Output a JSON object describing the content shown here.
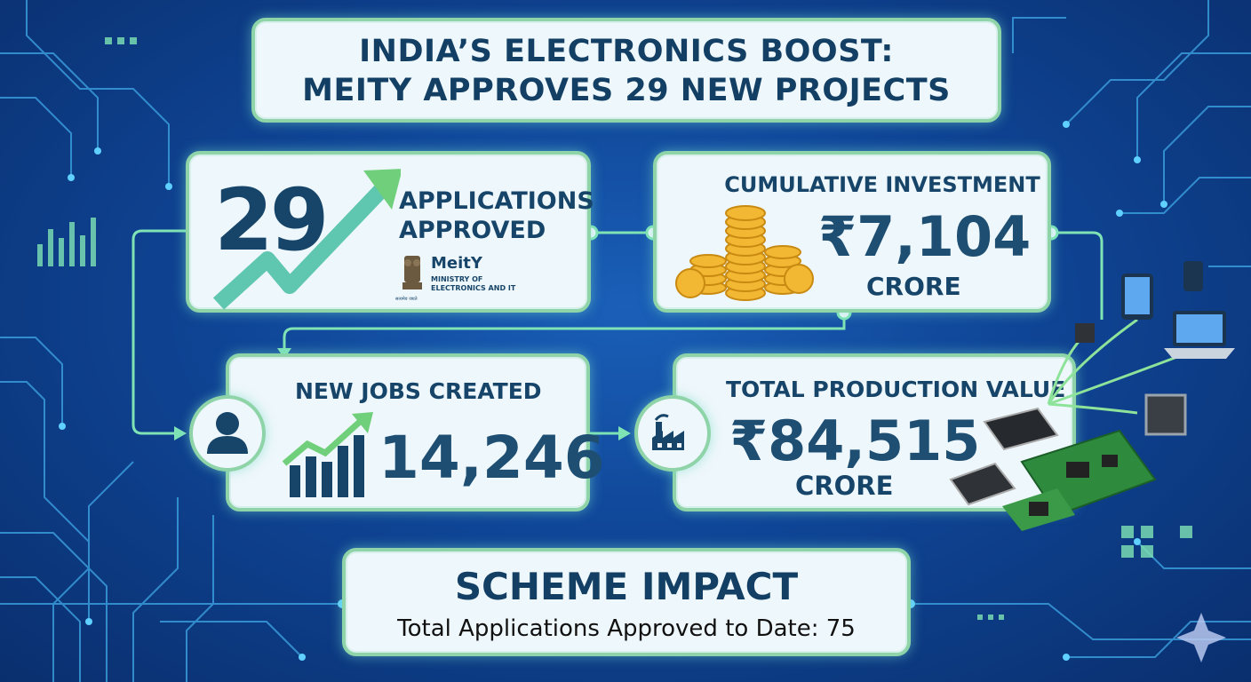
{
  "title": {
    "line1": "INDIA’S ELECTRONICS BOOST:",
    "line2": "MEITY APPROVES 29 NEW PROJECTS"
  },
  "applications": {
    "number": "29",
    "label_line1": "APPLICATIONS",
    "label_line2": "APPROVED",
    "ministry_name": "MeitY",
    "ministry_sub_line1": "MINISTRY OF",
    "ministry_sub_line2": "ELECTRONICS AND IT",
    "emblem_caption": "सत्यमेव जयते"
  },
  "investment": {
    "heading": "CUMULATIVE INVESTMENT",
    "value": "₹7,104",
    "unit": "CRORE"
  },
  "jobs": {
    "heading": "NEW JOBS CREATED",
    "value": "14,246"
  },
  "production": {
    "heading": "TOTAL PRODUCTION VALUE",
    "value": "₹84,515",
    "unit": "CRORE"
  },
  "impact": {
    "heading": "SCHEME IMPACT",
    "subtext": "Total Applications Approved to Date: 75"
  },
  "colors": {
    "background": "#0f4596",
    "card": "#eef7fb",
    "card_border": "#8fd3a8",
    "text_dark": "#17456a",
    "arrow_green": "#6fcf7a",
    "coin_gold": "#f2b733"
  }
}
